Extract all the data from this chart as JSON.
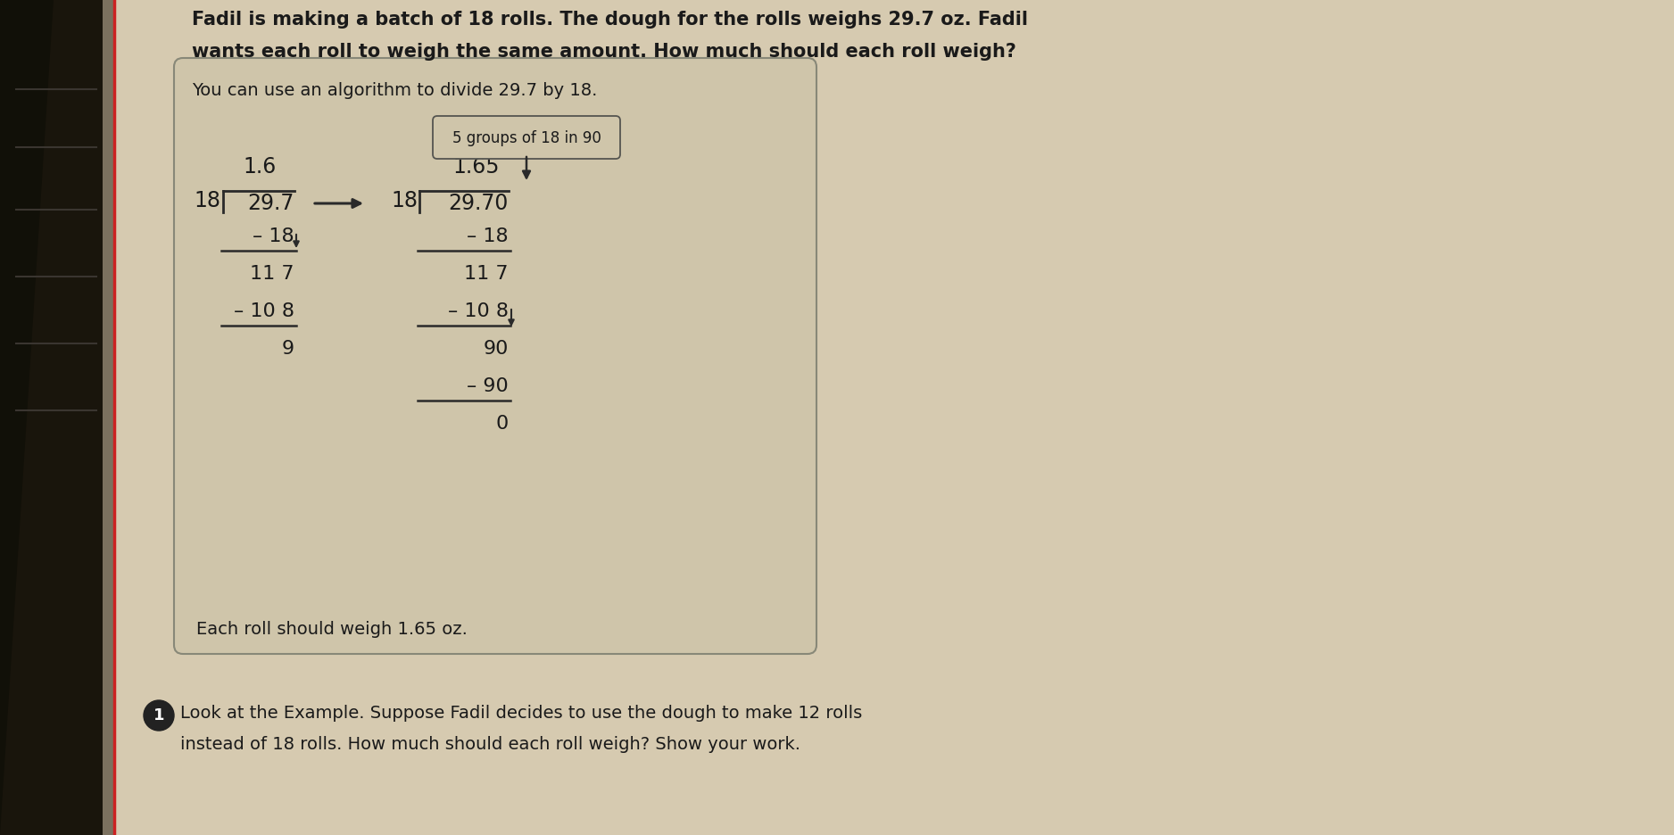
{
  "bg_color": "#d6cab0",
  "left_bg": "#1a1008",
  "box_bg": "#cfc5aa",
  "box_edge": "#888878",
  "title_text1": "Fadil is making a batch of 18 rolls. The dough for the rolls weighs 29.7 oz. Fadil",
  "title_text2": "wants each roll to weigh the same amount. How much should each roll weigh?",
  "subtitle": "You can use an algorithm to divide 29.7 by 18.",
  "callout_text": "5 groups of 18 in 90",
  "left_div_quotient": "1.6",
  "left_div_divisor": "18",
  "left_div_dividend": "29.7",
  "left_lines": [
    {
      "label": "– 18",
      "underline": true,
      "arrow_down": true
    },
    {
      "label": "11 7",
      "underline": false,
      "arrow_down": false
    },
    {
      "label": "– 10 8",
      "underline": true,
      "arrow_down": false
    },
    {
      "label": "9",
      "underline": false,
      "arrow_down": false
    }
  ],
  "right_div_quotient": "1.65",
  "right_div_divisor": "18",
  "right_div_dividend": "29.70",
  "right_lines": [
    {
      "label": "– 18",
      "underline": true,
      "arrow_down": false
    },
    {
      "label": "11 7",
      "underline": false,
      "arrow_down": false
    },
    {
      "label": "– 10 8",
      "underline": true,
      "arrow_down": true
    },
    {
      "label": "90",
      "underline": false,
      "arrow_down": false
    },
    {
      "label": "– 90",
      "underline": true,
      "arrow_down": false
    },
    {
      "label": "0",
      "underline": false,
      "arrow_down": false
    }
  ],
  "conclusion": "Each roll should weigh 1.65 oz.",
  "question_number": "1",
  "question_text1": "Look at the Example. Suppose Fadil decides to use the dough to make 12 rolls",
  "question_text2": "instead of 18 rolls. How much should each roll weigh? Show your work.",
  "text_color": "#1a1a1a",
  "line_color": "#2a2a2a"
}
